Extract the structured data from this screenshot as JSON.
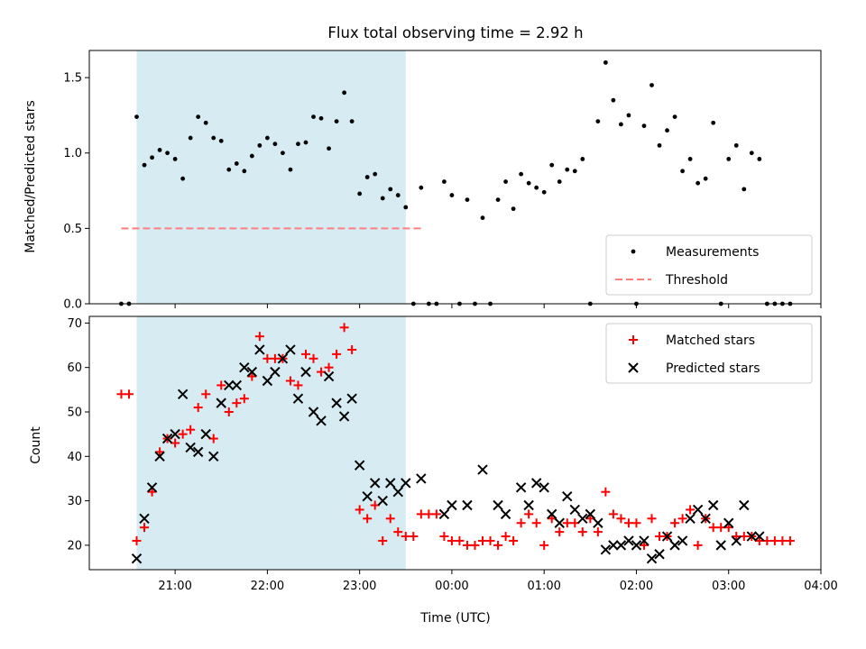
{
  "title": "Flux total observing time = 2.92 h",
  "chart_data": [
    {
      "type": "scatter",
      "ylabel": "Matched/Predicted stars",
      "ylim": [
        0,
        1.68
      ],
      "yticks": [
        0.0,
        0.5,
        1.0,
        1.5
      ],
      "ytick_labels": [
        "0.0",
        "0.5",
        "1.0",
        "1.5"
      ],
      "shaded_window": [
        "20:35",
        "23:30"
      ],
      "threshold": {
        "value": 0.5,
        "x_range": [
          "20:25",
          "23:40"
        ],
        "color": "#ff7f7f"
      },
      "legend": {
        "position": "lower right",
        "entries": [
          "Measurements",
          "Threshold"
        ]
      },
      "series": [
        {
          "name": "Measurements",
          "color": "#000000",
          "points": [
            [
              "20:25",
              0.0
            ],
            [
              "20:30",
              0.0
            ],
            [
              "20:35",
              1.24
            ],
            [
              "20:40",
              0.92
            ],
            [
              "20:45",
              0.97
            ],
            [
              "20:50",
              1.02
            ],
            [
              "20:55",
              1.0
            ],
            [
              "21:00",
              0.96
            ],
            [
              "21:05",
              0.83
            ],
            [
              "21:10",
              1.1
            ],
            [
              "21:15",
              1.24
            ],
            [
              "21:20",
              1.2
            ],
            [
              "21:25",
              1.1
            ],
            [
              "21:30",
              1.08
            ],
            [
              "21:35",
              0.89
            ],
            [
              "21:40",
              0.93
            ],
            [
              "21:45",
              0.88
            ],
            [
              "21:50",
              0.98
            ],
            [
              "21:55",
              1.05
            ],
            [
              "22:00",
              1.1
            ],
            [
              "22:05",
              1.06
            ],
            [
              "22:10",
              1.0
            ],
            [
              "22:15",
              0.89
            ],
            [
              "22:20",
              1.06
            ],
            [
              "22:25",
              1.07
            ],
            [
              "22:30",
              1.24
            ],
            [
              "22:35",
              1.23
            ],
            [
              "22:40",
              1.03
            ],
            [
              "22:45",
              1.21
            ],
            [
              "22:50",
              1.4
            ],
            [
              "22:55",
              1.21
            ],
            [
              "23:00",
              0.73
            ],
            [
              "23:05",
              0.84
            ],
            [
              "23:10",
              0.86
            ],
            [
              "23:15",
              0.7
            ],
            [
              "23:20",
              0.76
            ],
            [
              "23:25",
              0.72
            ],
            [
              "23:30",
              0.64
            ],
            [
              "23:35",
              0.0
            ],
            [
              "23:40",
              0.77
            ],
            [
              "23:45",
              0.0
            ],
            [
              "23:50",
              0.0
            ],
            [
              "23:55",
              0.81
            ],
            [
              "00:00",
              0.72
            ],
            [
              "00:05",
              0.0
            ],
            [
              "00:10",
              0.69
            ],
            [
              "00:15",
              0.0
            ],
            [
              "00:20",
              0.57
            ],
            [
              "00:25",
              0.0
            ],
            [
              "00:30",
              0.69
            ],
            [
              "00:35",
              0.81
            ],
            [
              "00:40",
              0.63
            ],
            [
              "00:45",
              0.86
            ],
            [
              "00:50",
              0.8
            ],
            [
              "00:55",
              0.77
            ],
            [
              "01:00",
              0.74
            ],
            [
              "01:05",
              0.92
            ],
            [
              "01:10",
              0.81
            ],
            [
              "01:15",
              0.89
            ],
            [
              "01:20",
              0.88
            ],
            [
              "01:25",
              0.96
            ],
            [
              "01:30",
              0.0
            ],
            [
              "01:35",
              1.21
            ],
            [
              "01:40",
              1.6
            ],
            [
              "01:45",
              1.35
            ],
            [
              "01:50",
              1.19
            ],
            [
              "01:55",
              1.25
            ],
            [
              "02:00",
              0.0
            ],
            [
              "02:05",
              1.18
            ],
            [
              "02:10",
              1.45
            ],
            [
              "02:15",
              1.05
            ],
            [
              "02:20",
              1.15
            ],
            [
              "02:25",
              1.24
            ],
            [
              "02:30",
              0.88
            ],
            [
              "02:35",
              0.96
            ],
            [
              "02:40",
              0.8
            ],
            [
              "02:45",
              0.83
            ],
            [
              "02:50",
              1.2
            ],
            [
              "02:55",
              0.0
            ],
            [
              "03:00",
              0.96
            ],
            [
              "03:05",
              1.05
            ],
            [
              "03:10",
              0.76
            ],
            [
              "03:15",
              1.0
            ],
            [
              "03:20",
              0.96
            ],
            [
              "03:25",
              0.0
            ],
            [
              "03:30",
              0.0
            ],
            [
              "03:35",
              0.0
            ],
            [
              "03:40",
              0.0
            ]
          ]
        }
      ]
    },
    {
      "type": "scatter",
      "xlabel": "Time (UTC)",
      "ylabel": "Count",
      "ylim": [
        14.5,
        71.5
      ],
      "yticks": [
        20,
        30,
        40,
        50,
        60,
        70
      ],
      "ytick_labels": [
        "20",
        "30",
        "40",
        "50",
        "60",
        "70"
      ],
      "xticks": [
        "21:00",
        "22:00",
        "23:00",
        "00:00",
        "01:00",
        "02:00",
        "03:00",
        "04:00"
      ],
      "shaded_window": [
        "20:35",
        "23:30"
      ],
      "legend": {
        "position": "upper right",
        "entries": [
          "Matched stars",
          "Predicted stars"
        ]
      },
      "series": [
        {
          "name": "Matched stars",
          "color": "#ff0000",
          "marker": "plus",
          "points": [
            [
              "20:25",
              54
            ],
            [
              "20:30",
              54
            ],
            [
              "20:35",
              21
            ],
            [
              "20:40",
              24
            ],
            [
              "20:45",
              32
            ],
            [
              "20:50",
              41
            ],
            [
              "20:55",
              44
            ],
            [
              "21:00",
              43
            ],
            [
              "21:05",
              45
            ],
            [
              "21:10",
              46
            ],
            [
              "21:15",
              51
            ],
            [
              "21:20",
              54
            ],
            [
              "21:25",
              44
            ],
            [
              "21:30",
              56
            ],
            [
              "21:35",
              50
            ],
            [
              "21:40",
              52
            ],
            [
              "21:45",
              53
            ],
            [
              "21:50",
              58
            ],
            [
              "21:55",
              67
            ],
            [
              "22:00",
              62
            ],
            [
              "22:05",
              62
            ],
            [
              "22:10",
              62
            ],
            [
              "22:15",
              57
            ],
            [
              "22:20",
              56
            ],
            [
              "22:25",
              63
            ],
            [
              "22:30",
              62
            ],
            [
              "22:35",
              59
            ],
            [
              "22:40",
              60
            ],
            [
              "22:45",
              63
            ],
            [
              "22:50",
              69
            ],
            [
              "22:55",
              64
            ],
            [
              "23:00",
              28
            ],
            [
              "23:05",
              26
            ],
            [
              "23:10",
              29
            ],
            [
              "23:15",
              21
            ],
            [
              "23:20",
              26
            ],
            [
              "23:25",
              23
            ],
            [
              "23:30",
              22
            ],
            [
              "23:35",
              22
            ],
            [
              "23:40",
              27
            ],
            [
              "23:45",
              27
            ],
            [
              "23:50",
              27
            ],
            [
              "23:55",
              22
            ],
            [
              "00:00",
              21
            ],
            [
              "00:05",
              21
            ],
            [
              "00:10",
              20
            ],
            [
              "00:15",
              20
            ],
            [
              "00:20",
              21
            ],
            [
              "00:25",
              21
            ],
            [
              "00:30",
              20
            ],
            [
              "00:35",
              22
            ],
            [
              "00:40",
              21
            ],
            [
              "00:45",
              25
            ],
            [
              "00:50",
              27
            ],
            [
              "00:55",
              25
            ],
            [
              "01:00",
              20
            ],
            [
              "01:05",
              26
            ],
            [
              "01:10",
              23
            ],
            [
              "01:15",
              25
            ],
            [
              "01:20",
              25
            ],
            [
              "01:25",
              23
            ],
            [
              "01:30",
              26
            ],
            [
              "01:35",
              23
            ],
            [
              "01:40",
              32
            ],
            [
              "01:45",
              27
            ],
            [
              "01:50",
              26
            ],
            [
              "01:55",
              25
            ],
            [
              "02:00",
              25
            ],
            [
              "02:05",
              20
            ],
            [
              "02:10",
              26
            ],
            [
              "02:15",
              22
            ],
            [
              "02:20",
              22
            ],
            [
              "02:25",
              25
            ],
            [
              "02:30",
              26
            ],
            [
              "02:35",
              28
            ],
            [
              "02:40",
              20
            ],
            [
              "02:45",
              26
            ],
            [
              "02:50",
              24
            ],
            [
              "02:55",
              24
            ],
            [
              "03:00",
              24
            ],
            [
              "03:05",
              22
            ],
            [
              "03:10",
              22
            ],
            [
              "03:15",
              22
            ],
            [
              "03:20",
              21
            ],
            [
              "03:25",
              21
            ],
            [
              "03:30",
              21
            ],
            [
              "03:35",
              21
            ],
            [
              "03:40",
              21
            ]
          ]
        },
        {
          "name": "Predicted stars",
          "color": "#000000",
          "marker": "x",
          "points": [
            [
              "20:35",
              17
            ],
            [
              "20:40",
              26
            ],
            [
              "20:45",
              33
            ],
            [
              "20:50",
              40
            ],
            [
              "20:55",
              44
            ],
            [
              "21:00",
              45
            ],
            [
              "21:05",
              54
            ],
            [
              "21:10",
              42
            ],
            [
              "21:15",
              41
            ],
            [
              "21:20",
              45
            ],
            [
              "21:25",
              40
            ],
            [
              "21:30",
              52
            ],
            [
              "21:35",
              56
            ],
            [
              "21:40",
              56
            ],
            [
              "21:45",
              60
            ],
            [
              "21:50",
              59
            ],
            [
              "21:55",
              64
            ],
            [
              "22:00",
              57
            ],
            [
              "22:05",
              59
            ],
            [
              "22:10",
              62
            ],
            [
              "22:15",
              64
            ],
            [
              "22:20",
              53
            ],
            [
              "22:25",
              59
            ],
            [
              "22:30",
              50
            ],
            [
              "22:35",
              48
            ],
            [
              "22:40",
              58
            ],
            [
              "22:45",
              52
            ],
            [
              "22:50",
              49
            ],
            [
              "22:55",
              53
            ],
            [
              "23:00",
              38
            ],
            [
              "23:05",
              31
            ],
            [
              "23:10",
              34
            ],
            [
              "23:15",
              30
            ],
            [
              "23:20",
              34
            ],
            [
              "23:25",
              32
            ],
            [
              "23:30",
              34
            ],
            [
              "23:40",
              35
            ],
            [
              "23:55",
              27
            ],
            [
              "00:00",
              29
            ],
            [
              "00:10",
              29
            ],
            [
              "00:20",
              37
            ],
            [
              "00:30",
              29
            ],
            [
              "00:35",
              27
            ],
            [
              "00:45",
              33
            ],
            [
              "00:50",
              29
            ],
            [
              "00:55",
              34
            ],
            [
              "01:00",
              33
            ],
            [
              "01:05",
              27
            ],
            [
              "01:10",
              25
            ],
            [
              "01:15",
              31
            ],
            [
              "01:20",
              28
            ],
            [
              "01:25",
              26
            ],
            [
              "01:30",
              27
            ],
            [
              "01:35",
              25
            ],
            [
              "01:40",
              19
            ],
            [
              "01:45",
              20
            ],
            [
              "01:50",
              20
            ],
            [
              "01:55",
              21
            ],
            [
              "02:00",
              20
            ],
            [
              "02:05",
              21
            ],
            [
              "02:10",
              17
            ],
            [
              "02:15",
              18
            ],
            [
              "02:20",
              22
            ],
            [
              "02:25",
              20
            ],
            [
              "02:30",
              21
            ],
            [
              "02:35",
              26
            ],
            [
              "02:40",
              28
            ],
            [
              "02:45",
              26
            ],
            [
              "02:50",
              29
            ],
            [
              "02:55",
              20
            ],
            [
              "03:00",
              25
            ],
            [
              "03:05",
              21
            ],
            [
              "03:10",
              29
            ],
            [
              "03:15",
              22
            ],
            [
              "03:20",
              22
            ]
          ]
        }
      ]
    }
  ]
}
